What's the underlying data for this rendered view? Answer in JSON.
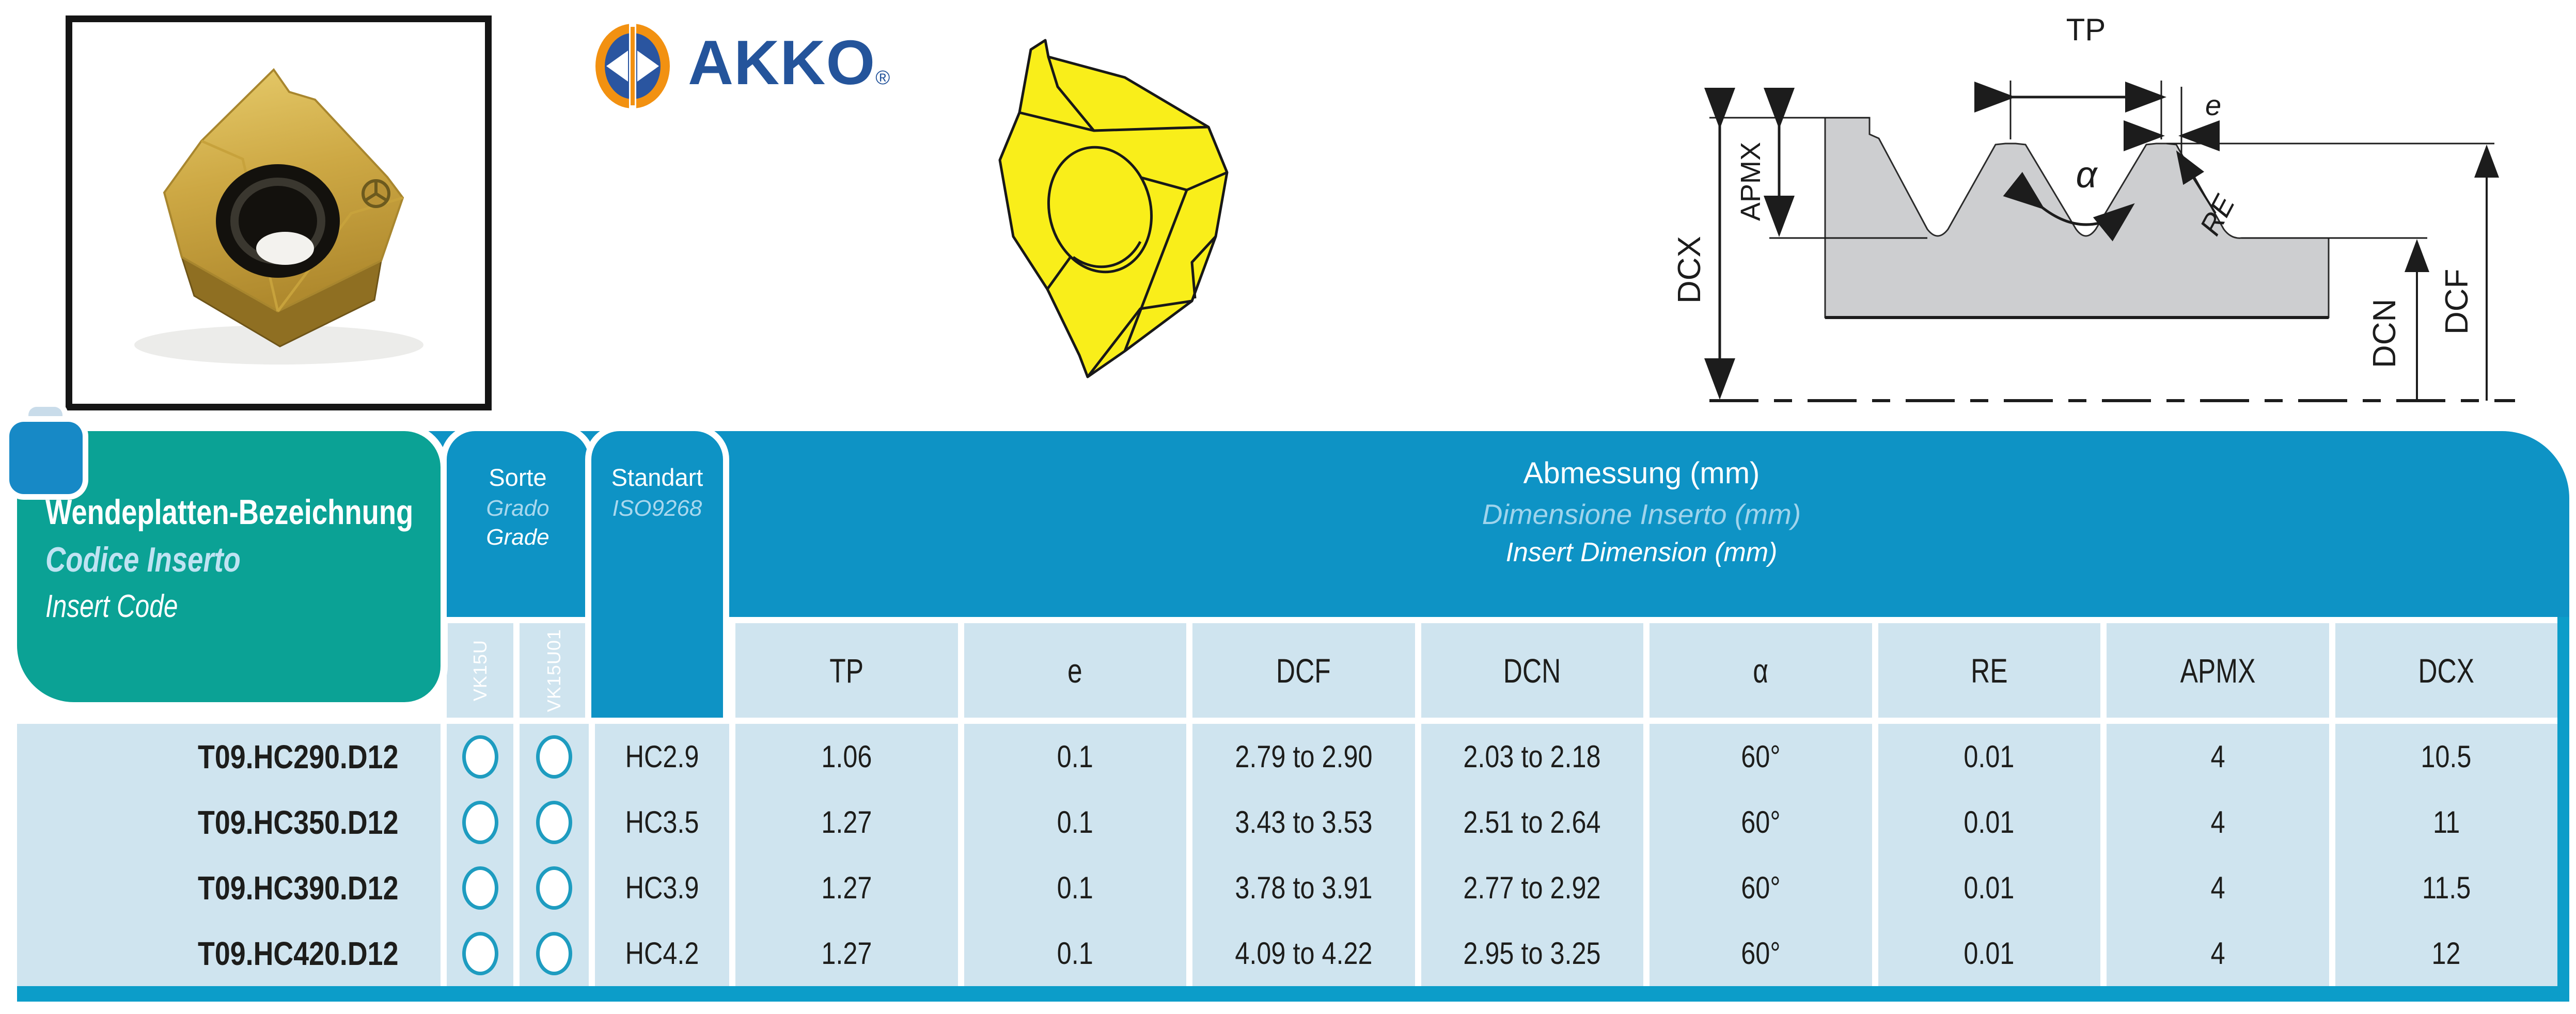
{
  "logo": {
    "text": "AKKO",
    "registered": "®"
  },
  "photo": {
    "alt_name": "gold-carbide-threading-insert-photo"
  },
  "drawing": {
    "alt_name": "yellow-insert-line-drawing"
  },
  "diagram": {
    "labels": {
      "tp": "TP",
      "e": "e",
      "re": "RE",
      "alpha": "α",
      "apmx": "APMX",
      "dcx": "DCX",
      "dcn": "DCN",
      "dcf": "DCF"
    }
  },
  "table": {
    "title": {
      "line1": "Wendeplatten-Bezeichnung",
      "line2": "Codice Inserto",
      "line3": "Insert Code"
    },
    "sorte": {
      "line1": "Sorte",
      "line2": "Grado",
      "line3": "Grade",
      "columns": [
        "VK15U",
        "VK15U01"
      ]
    },
    "standart": {
      "line1": "Standart",
      "line2": "ISO9268"
    },
    "abmessung": {
      "line1": "Abmessung (mm)",
      "line2": "Dimensione Inserto (mm)",
      "line3": "Insert Dimension (mm)"
    },
    "dims": [
      "TP",
      "e",
      "DCF",
      "DCN",
      "α",
      "RE",
      "APMX",
      "DCX"
    ],
    "dim_keys": [
      "tp",
      "e",
      "dcf",
      "dcn",
      "alpha",
      "re",
      "apmx",
      "dcx"
    ],
    "rows": [
      {
        "code": "T09.HC290.D12",
        "vk15u": true,
        "vk15u01": true,
        "grade": "HC2.9",
        "tp": "1.06",
        "e": "0.1",
        "dcf": "2.79 to 2.90",
        "dcn": "2.03 to 2.18",
        "alpha": "60°",
        "re": "0.01",
        "apmx": "4",
        "dcx": "10.5"
      },
      {
        "code": "T09.HC350.D12",
        "vk15u": true,
        "vk15u01": true,
        "grade": "HC3.5",
        "tp": "1.27",
        "e": "0.1",
        "dcf": "3.43 to 3.53",
        "dcn": "2.51 to 2.64",
        "alpha": "60°",
        "re": "0.01",
        "apmx": "4",
        "dcx": "11"
      },
      {
        "code": "T09.HC390.D12",
        "vk15u": true,
        "vk15u01": true,
        "grade": "HC3.9",
        "tp": "1.27",
        "e": "0.1",
        "dcf": "3.78 to 3.91",
        "dcn": "2.77 to 2.92",
        "alpha": "60°",
        "re": "0.01",
        "apmx": "4",
        "dcx": "11.5"
      },
      {
        "code": "T09.HC420.D12",
        "vk15u": true,
        "vk15u01": true,
        "grade": "HC4.2",
        "tp": "1.27",
        "e": "0.1",
        "dcf": "4.09 to 4.22",
        "dcn": "2.95 to 3.25",
        "alpha": "60°",
        "re": "0.01",
        "apmx": "4",
        "dcx": "12"
      }
    ]
  },
  "colors": {
    "header_blue": "#0e93c5",
    "cell_light_blue": "#cfe4ef",
    "teal": "#0ba295",
    "tab_blue": "#1789c6",
    "tab_light": "#c9dcea",
    "strip_blue": "#0c9dc9",
    "circle_outline": "#1e9cc0",
    "logo_navy": "#24549b",
    "logo_orange": "#f29111",
    "drawing_yellow": "#f9ee1a",
    "text_dark": "#1d1d1b"
  }
}
